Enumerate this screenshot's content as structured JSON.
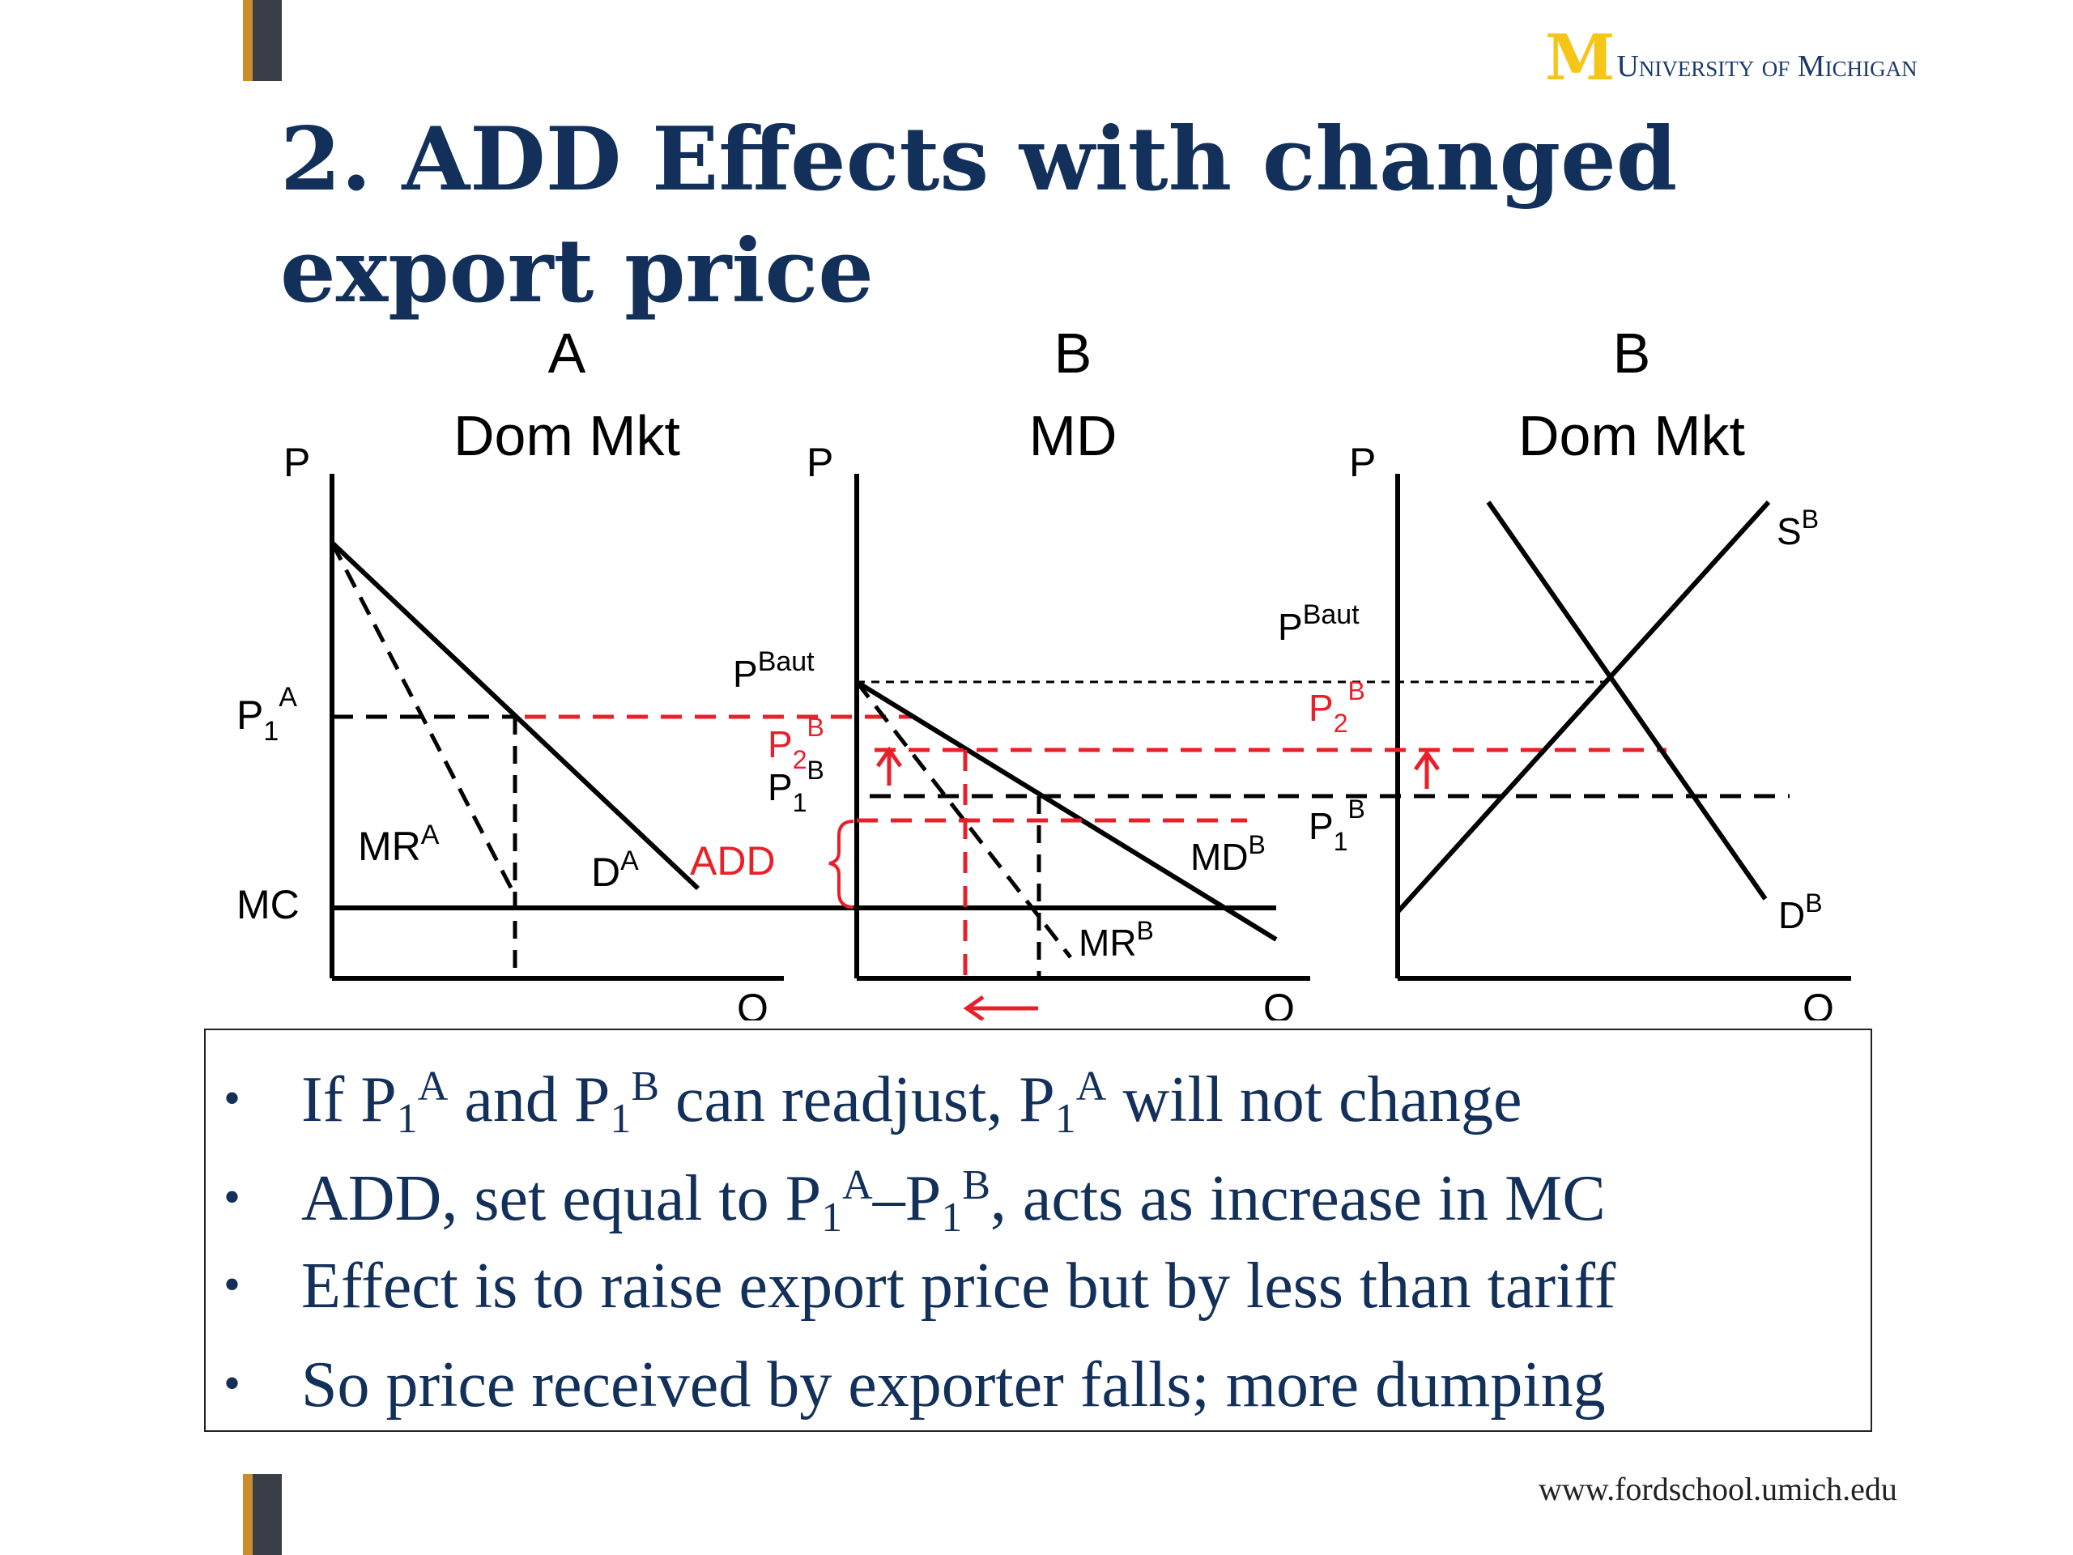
{
  "logo": {
    "mark": "M",
    "text": "University of Michigan"
  },
  "title": "2.  ADD Effects with changed export price",
  "panels": {
    "a": {
      "heading1": "A",
      "heading2": "Dom Mkt",
      "axis_p": "P",
      "axis_q": "Q",
      "p1a": "P",
      "p1a_sub": "1",
      "p1a_sup": "A",
      "mc": "MC",
      "mr": "MR",
      "mr_sup": "A",
      "d": "D",
      "d_sup": "A"
    },
    "md": {
      "heading1": "B",
      "heading2": "MD",
      "axis_p": "P",
      "axis_q": "Q",
      "pbaut": "P",
      "pbaut_sup": "Baut",
      "p2b": "P",
      "p2b_sub": "2",
      "p2b_sup": "B",
      "p1b": "P",
      "p1b_sub": "1",
      "p1b_sup": "B",
      "add": "ADD",
      "md": "MD",
      "md_sup": "B",
      "mr": "MR",
      "mr_sup": "B"
    },
    "b": {
      "heading1": "B",
      "heading2": "Dom Mkt",
      "axis_p": "P",
      "axis_q": "Q",
      "pbaut": "P",
      "pbaut_sup": "Baut",
      "p2b": "P",
      "p2b_sub": "2",
      "p2b_sup": "B",
      "p1b": "P",
      "p1b_sub": "1",
      "p1b_sup": "B",
      "s": "S",
      "s_sup": "B",
      "d": "D",
      "d_sup": "B"
    }
  },
  "bullets": {
    "b1": {
      "t1": "If P",
      "s1": "1",
      "p1": "A",
      "t2": " and P",
      "s2": "1",
      "p2": "B",
      "t3": " can readjust, P",
      "s3": "1",
      "p3": "A",
      "t4": " will not change"
    },
    "b2": {
      "t1": "ADD, set equal to P",
      "s1": "1",
      "p1": "A",
      "t2": "–P",
      "s2": "1",
      "p2": "B",
      "t3": ", acts as increase in MC"
    },
    "b3": {
      "t1": "Effect is to raise export price but by less than tariff"
    },
    "b4": {
      "t1": "So price received by exporter falls; more dumping"
    }
  },
  "footer": "www.fordschool.umich.edu",
  "colors": {
    "accent_red": "#e8202a",
    "navy": "#12305a",
    "maize": "#f5c518"
  },
  "bullet_glyph": "•"
}
